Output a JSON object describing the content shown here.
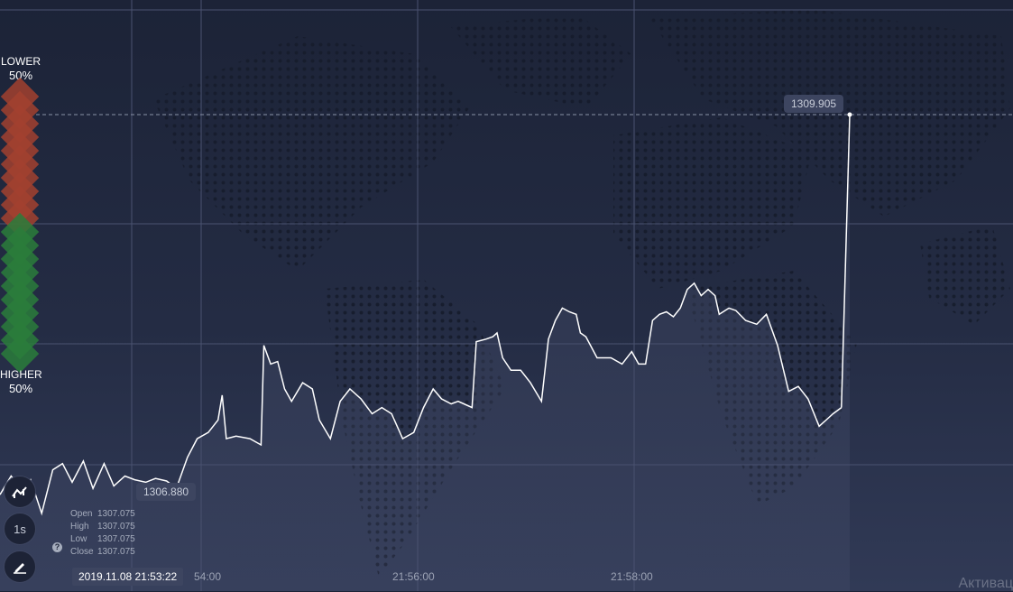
{
  "sentiment": {
    "lower_label": "LOWER",
    "lower_pct": "50%",
    "higher_label": "HIGHER",
    "higher_pct": "50%",
    "lower_color": "#a2412f",
    "higher_color": "#2a7d3b"
  },
  "price_labels": {
    "current": "1309.905",
    "reference": "1306.880"
  },
  "ohlc": {
    "open_label": "Open",
    "open": "1307.075",
    "high_label": "High",
    "high": "1307.075",
    "low_label": "Low",
    "low": "1307.075",
    "close_label": "Close",
    "close": "1307.075"
  },
  "datetime": "2019.11.08 21:53:22",
  "timeframe_button": "1s",
  "x_ticks": [
    "54:00",
    "21:56:00",
    "21:58:00"
  ],
  "watermark": "Активац",
  "icons": [
    "chart-type-icon",
    "pencil-icon",
    "help-icon"
  ],
  "chart_data": {
    "type": "line",
    "y_unit_note": "",
    "y_ticks_visible": false,
    "current_price": 1309.905,
    "reference_price": 1306.88,
    "line_color": "#ffffff",
    "points": [
      [
        0,
        1306.85
      ],
      [
        8,
        1307.0
      ],
      [
        15,
        1306.9
      ],
      [
        22,
        1306.97
      ],
      [
        30,
        1306.7
      ],
      [
        38,
        1307.05
      ],
      [
        45,
        1307.1
      ],
      [
        52,
        1306.95
      ],
      [
        60,
        1307.12
      ],
      [
        67,
        1306.9
      ],
      [
        75,
        1307.1
      ],
      [
        82,
        1306.92
      ],
      [
        90,
        1307.0
      ],
      [
        97,
        1306.97
      ],
      [
        105,
        1306.95
      ],
      [
        112,
        1306.98
      ],
      [
        120,
        1306.96
      ],
      [
        127,
        1306.9
      ],
      [
        135,
        1307.15
      ],
      [
        142,
        1307.3
      ],
      [
        150,
        1307.35
      ],
      [
        157,
        1307.45
      ],
      [
        160,
        1307.65
      ],
      [
        163,
        1307.3
      ],
      [
        170,
        1307.32
      ],
      [
        180,
        1307.3
      ],
      [
        188,
        1307.25
      ],
      [
        190,
        1308.05
      ],
      [
        195,
        1307.9
      ],
      [
        200,
        1307.92
      ],
      [
        205,
        1307.7
      ],
      [
        210,
        1307.6
      ],
      [
        218,
        1307.75
      ],
      [
        225,
        1307.7
      ],
      [
        230,
        1307.45
      ],
      [
        238,
        1307.3
      ],
      [
        245,
        1307.6
      ],
      [
        252,
        1307.7
      ],
      [
        260,
        1307.62
      ],
      [
        268,
        1307.5
      ],
      [
        275,
        1307.55
      ],
      [
        282,
        1307.5
      ],
      [
        290,
        1307.3
      ],
      [
        298,
        1307.35
      ],
      [
        305,
        1307.55
      ],
      [
        312,
        1307.7
      ],
      [
        318,
        1307.62
      ],
      [
        325,
        1307.58
      ],
      [
        330,
        1307.6
      ],
      [
        340,
        1307.55
      ],
      [
        343,
        1308.08
      ],
      [
        350,
        1308.1
      ],
      [
        355,
        1308.12
      ],
      [
        358,
        1308.15
      ],
      [
        362,
        1307.95
      ],
      [
        368,
        1307.85
      ],
      [
        375,
        1307.85
      ],
      [
        382,
        1307.75
      ],
      [
        390,
        1307.6
      ],
      [
        395,
        1308.1
      ],
      [
        400,
        1308.25
      ],
      [
        405,
        1308.35
      ],
      [
        410,
        1308.32
      ],
      [
        415,
        1308.3
      ],
      [
        418,
        1308.15
      ],
      [
        422,
        1308.12
      ],
      [
        430,
        1307.95
      ],
      [
        440,
        1307.95
      ],
      [
        448,
        1307.9
      ],
      [
        455,
        1308.0
      ],
      [
        460,
        1307.9
      ],
      [
        465,
        1307.9
      ],
      [
        470,
        1308.25
      ],
      [
        475,
        1308.3
      ],
      [
        480,
        1308.32
      ],
      [
        485,
        1308.28
      ],
      [
        490,
        1308.35
      ],
      [
        495,
        1308.5
      ],
      [
        500,
        1308.55
      ],
      [
        505,
        1308.45
      ],
      [
        510,
        1308.5
      ],
      [
        515,
        1308.45
      ],
      [
        518,
        1308.3
      ],
      [
        525,
        1308.35
      ],
      [
        530,
        1308.33
      ],
      [
        537,
        1308.25
      ],
      [
        545,
        1308.22
      ],
      [
        552,
        1308.3
      ],
      [
        560,
        1308.05
      ],
      [
        568,
        1307.68
      ],
      [
        575,
        1307.72
      ],
      [
        582,
        1307.62
      ],
      [
        590,
        1307.4
      ],
      [
        596,
        1307.46
      ],
      [
        600,
        1307.5
      ],
      [
        606,
        1307.55
      ]
    ]
  }
}
